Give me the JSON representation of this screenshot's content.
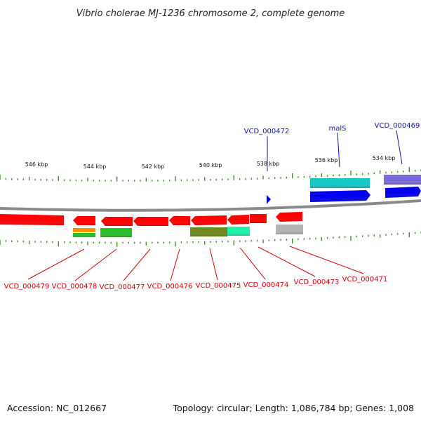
{
  "title": "Vibrio cholerae MJ-1236 chromosome 2, complete genome",
  "footer": {
    "accession": "Accession: NC_012667",
    "info": "Topology: circular; Length: 1,086,784 bp; Genes: 1,008"
  },
  "scale_labels": [
    "546 kbp",
    "544 kbp",
    "542 kbp",
    "540 kbp",
    "538 kbp",
    "536 kbp",
    "534 kbp"
  ],
  "gene_labels_top": [
    "VCD_000472",
    "malS",
    "VCD_000469"
  ],
  "gene_labels_bottom": [
    "VCD_000479",
    "VCD_000478",
    "VCD_000477",
    "VCD_000476",
    "VCD_000475",
    "VCD_000474",
    "VCD_000473",
    "VCD_000471"
  ],
  "colors": {
    "backbone": "#8a8a8a",
    "tick": "#2a8a1a",
    "gene_red": "#ff0000",
    "gene_blue": "#0000ee",
    "gene_cyan": "#18c8c8",
    "gene_purple": "#7a6ad8",
    "gene_green": "#28c028",
    "gene_orange": "#ff9000",
    "gene_olive": "#6e8a1e",
    "gene_teal": "#20f0a8",
    "gene_gray": "#b4b4b4",
    "label_blue": "#1010c0",
    "label_red": "#d00000"
  }
}
